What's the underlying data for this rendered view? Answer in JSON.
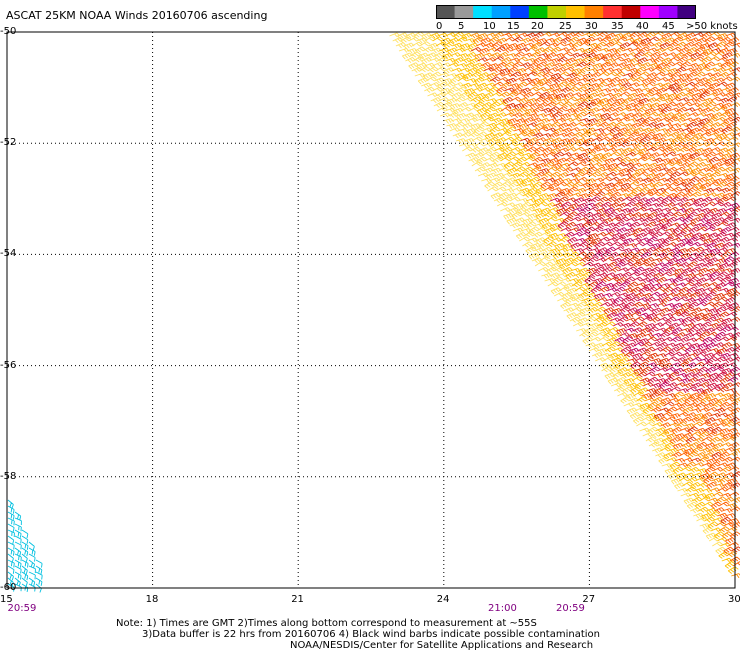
{
  "title": "ASCAT 25KM NOAA Winds 20160706 ascending",
  "colorbar": {
    "colors": [
      "#555555",
      "#9a9a9a",
      "#00e0ff",
      "#00a0ff",
      "#0040ff",
      "#00c000",
      "#c0d000",
      "#ffc000",
      "#ff8000",
      "#ff3030",
      "#c00000",
      "#ff00ff",
      "#a000ff",
      "#400080"
    ],
    "labels": [
      "0",
      "5",
      "10",
      "15",
      "20",
      "25",
      "30",
      "35",
      "40",
      "45",
      ">50 knots"
    ]
  },
  "axes": {
    "x_ticks": [
      "15",
      "18",
      "21",
      "24",
      "27",
      "30"
    ],
    "y_ticks": [
      "-50",
      "-52",
      "-54",
      "-56",
      "-58",
      "-60"
    ],
    "x_range": [
      15,
      30
    ],
    "y_range": [
      -50,
      -60
    ]
  },
  "time_labels": [
    {
      "text": "20:59",
      "lon": 15.3
    },
    {
      "text": "21:00",
      "lon": 25.2
    },
    {
      "text": "20:59",
      "lon": 26.6
    }
  ],
  "wind_swaths": {
    "main_swath_colors": [
      "#ffe060",
      "#ffc000",
      "#ff9000",
      "#ff6000",
      "#e03000",
      "#d01040",
      "#c00060"
    ],
    "corner_swath_color": "#00c0e0"
  },
  "notes": {
    "line1": "Note: 1) Times are GMT 2)Times along bottom correspond to measurement at ~55S",
    "line2": "3)Data buffer is 22 hrs from 20160706 4) Black wind barbs indicate possible contamination",
    "line3": "NOAA/NESDIS/Center for Satellite Applications and Research"
  }
}
